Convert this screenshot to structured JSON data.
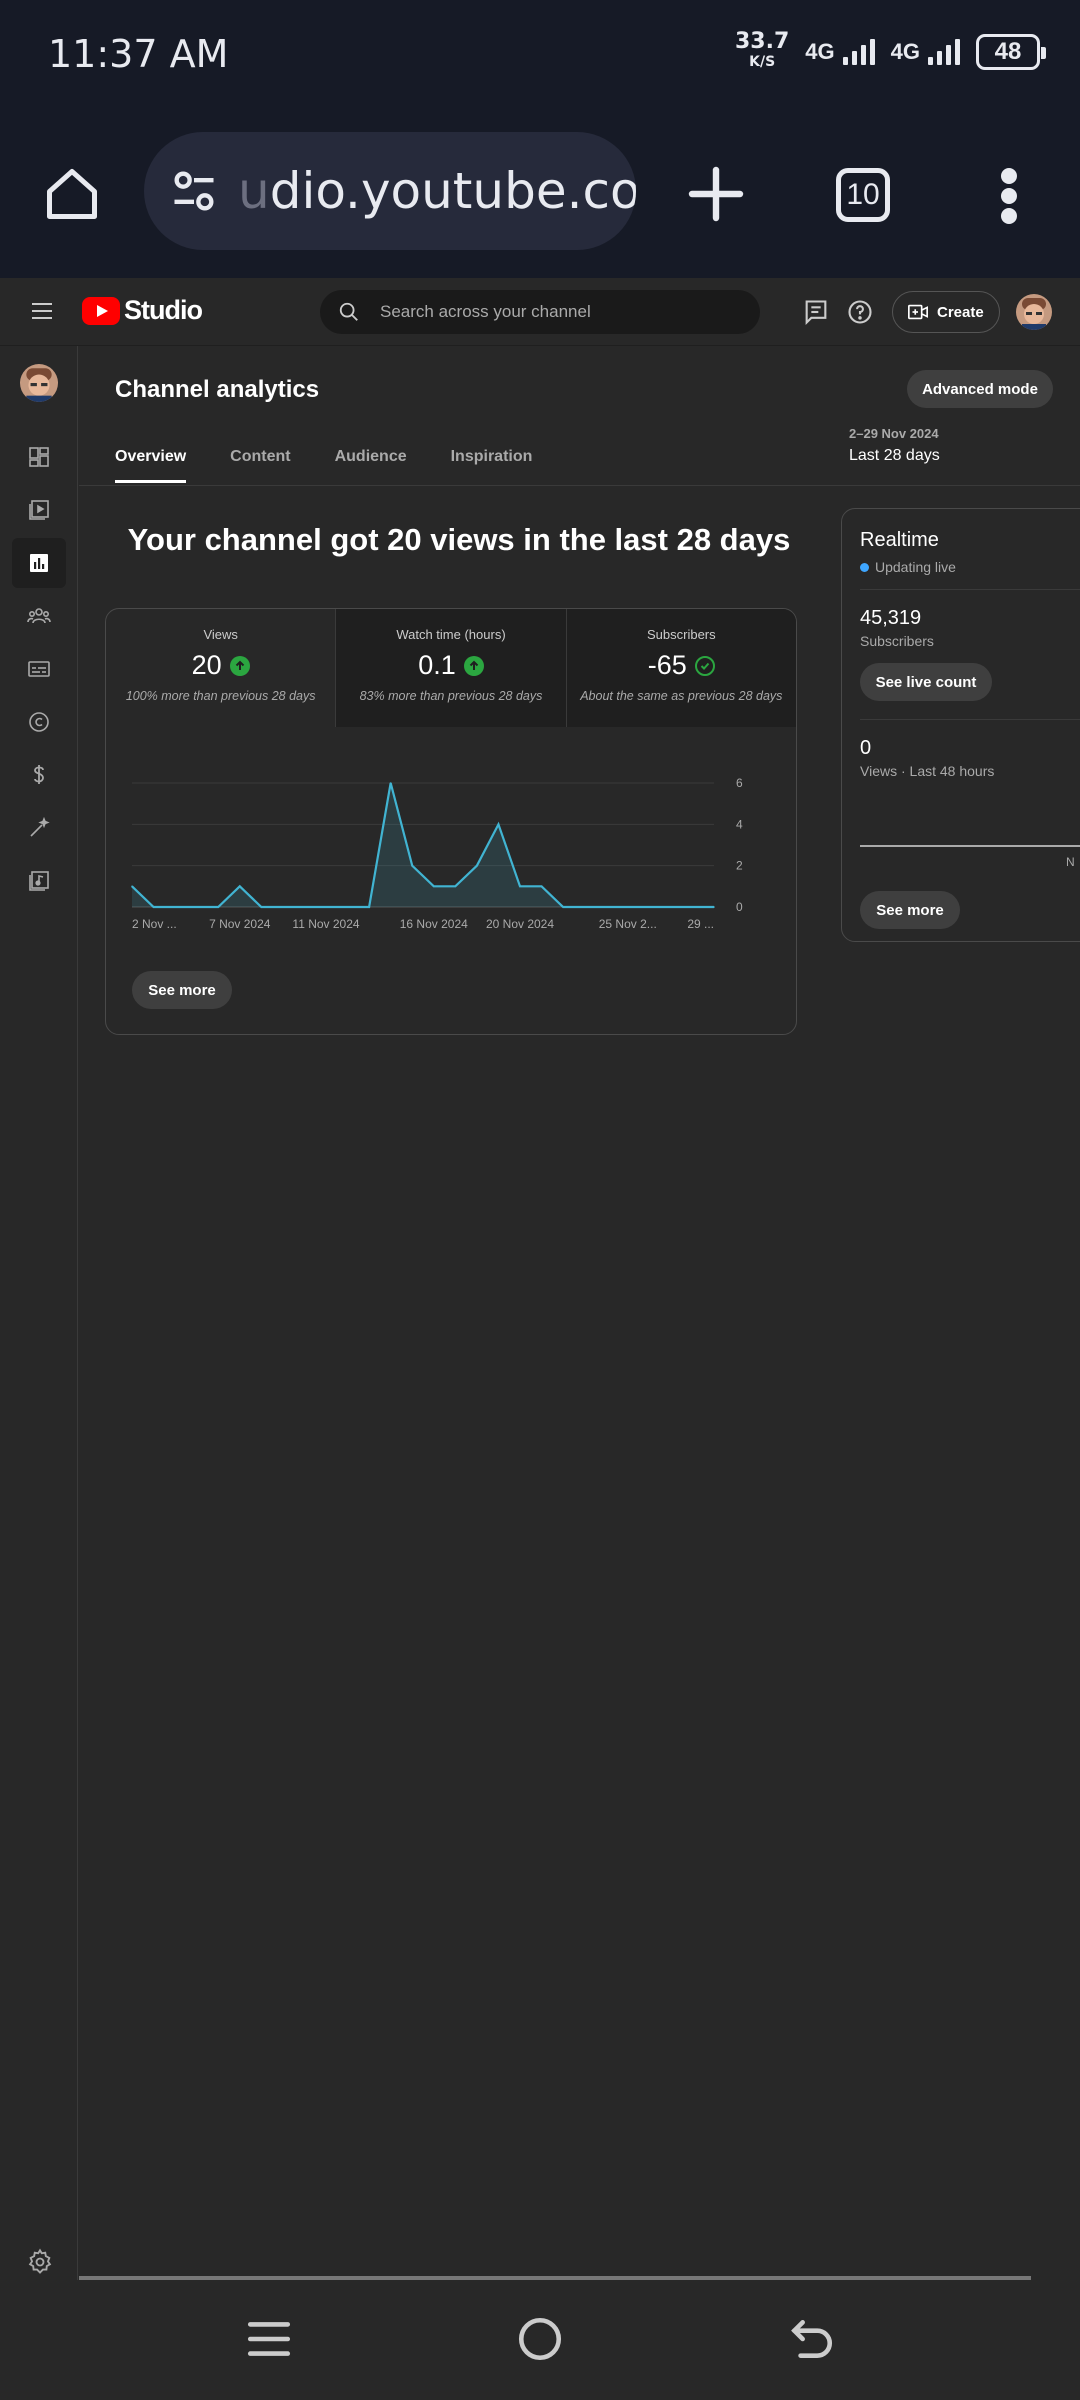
{
  "status": {
    "time": "11:37 AM",
    "net_speed": "33.7",
    "net_unit": "K/S",
    "sim1": "4G",
    "sim2": "4G",
    "battery": "48"
  },
  "browser": {
    "url_faded": "u",
    "url": "dio.youtube.com",
    "tab_count": "10"
  },
  "studio": {
    "logo_text": "Studio",
    "search_placeholder": "Search across your channel",
    "create_label": "Create"
  },
  "analytics": {
    "title": "Channel analytics",
    "advanced_mode": "Advanced mode",
    "tabs": [
      "Overview",
      "Content",
      "Audience",
      "Inspiration"
    ],
    "date_small": "2–29 Nov 2024",
    "date_label": "Last 28 days",
    "headline": "Your channel got 20 views in the last 28 days",
    "metrics": [
      {
        "label": "Views",
        "value": "20",
        "note": "100% more than previous 28 days",
        "trend": "up"
      },
      {
        "label": "Watch time (hours)",
        "value": "0.1",
        "note": "83% more than previous 28 days",
        "trend": "up"
      },
      {
        "label": "Subscribers",
        "value": "-65",
        "note": "About the same as previous 28 days",
        "trend": "same"
      }
    ],
    "see_more": "See more"
  },
  "chart_data": {
    "type": "area",
    "title": "",
    "x_tick_labels": [
      "2 Nov ...",
      "7 Nov 2024",
      "11 Nov 2024",
      "16 Nov 2024",
      "20 Nov 2024",
      "25 Nov 2...",
      "29 ..."
    ],
    "y_ticks": [
      0,
      2,
      4,
      6
    ],
    "ylim": [
      0,
      6
    ],
    "x": [
      "2 Nov",
      "3 Nov",
      "4 Nov",
      "5 Nov",
      "6 Nov",
      "7 Nov",
      "8 Nov",
      "9 Nov",
      "10 Nov",
      "11 Nov",
      "12 Nov",
      "13 Nov",
      "14 Nov",
      "15 Nov",
      "16 Nov",
      "17 Nov",
      "18 Nov",
      "19 Nov",
      "20 Nov",
      "21 Nov",
      "22 Nov",
      "23 Nov",
      "24 Nov",
      "25 Nov",
      "26 Nov",
      "27 Nov",
      "28 Nov",
      "29 Nov"
    ],
    "series": [
      {
        "name": "Views",
        "values": [
          1,
          0,
          0,
          0,
          0,
          1,
          0,
          0,
          0,
          0,
          0,
          0,
          6,
          2,
          1,
          1,
          2,
          4,
          1,
          1,
          0,
          0,
          0,
          0,
          0,
          0,
          0,
          0
        ]
      }
    ],
    "color": "#41b4d2",
    "grid": true
  },
  "realtime": {
    "title": "Realtime",
    "live": "Updating live",
    "subs_value": "45,319",
    "subs_label": "Subscribers",
    "live_count_btn": "See live count",
    "views_value": "0",
    "views_label": "Views · Last 48 hours",
    "chart_tick": "N",
    "see_more": "See more"
  }
}
